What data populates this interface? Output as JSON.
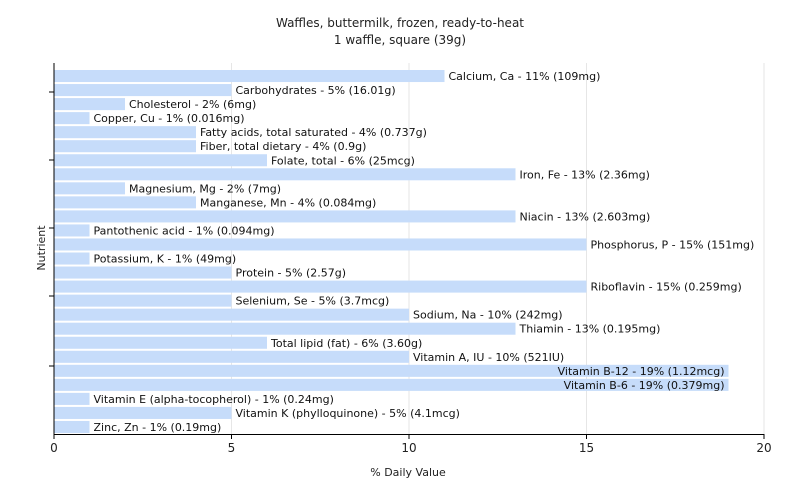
{
  "chart_data": {
    "type": "bar",
    "orientation": "horizontal",
    "title": "Waffles, buttermilk, frozen, ready-to-heat",
    "subtitle": "1 waffle, square (39g)",
    "xlabel": "% Daily Value",
    "ylabel": "Nutrient",
    "xlim": [
      0,
      20
    ],
    "xticks": [
      0,
      5,
      10,
      15,
      20
    ],
    "grid": true,
    "bar_color": "#c6dcfa",
    "categories": [
      "Calcium, Ca",
      "Carbohydrates",
      "Cholesterol",
      "Copper, Cu",
      "Fatty acids, total saturated",
      "Fiber, total dietary",
      "Folate, total",
      "Iron, Fe",
      "Magnesium, Mg",
      "Manganese, Mn",
      "Niacin",
      "Pantothenic acid",
      "Phosphorus, P",
      "Potassium, K",
      "Protein",
      "Riboflavin",
      "Selenium, Se",
      "Sodium, Na",
      "Thiamin",
      "Total lipid (fat)",
      "Vitamin A, IU",
      "Vitamin B-12",
      "Vitamin B-6",
      "Vitamin E (alpha-tocopherol)",
      "Vitamin K (phylloquinone)",
      "Zinc, Zn"
    ],
    "values": [
      11,
      5,
      2,
      1,
      4,
      4,
      6,
      13,
      2,
      4,
      13,
      1,
      15,
      1,
      5,
      15,
      5,
      10,
      13,
      6,
      10,
      19,
      19,
      1,
      5,
      1
    ],
    "labels": [
      "Calcium, Ca - 11% (109mg)",
      "Carbohydrates - 5% (16.01g)",
      "Cholesterol - 2% (6mg)",
      "Copper, Cu - 1% (0.016mg)",
      "Fatty acids, total saturated - 4% (0.737g)",
      "Fiber, total dietary - 4% (0.9g)",
      "Folate, total - 6% (25mcg)",
      "Iron, Fe - 13% (2.36mg)",
      "Magnesium, Mg - 2% (7mg)",
      "Manganese, Mn - 4% (0.084mg)",
      "Niacin - 13% (2.603mg)",
      "Pantothenic acid - 1% (0.094mg)",
      "Phosphorus, P - 15% (151mg)",
      "Potassium, K - 1% (49mg)",
      "Protein - 5% (2.57g)",
      "Riboflavin - 15% (0.259mg)",
      "Selenium, Se - 5% (3.7mcg)",
      "Sodium, Na - 10% (242mg)",
      "Thiamin - 13% (0.195mg)",
      "Total lipid (fat) - 6% (3.60g)",
      "Vitamin A, IU - 10% (521IU)",
      "Vitamin B-12 - 19% (1.12mcg)",
      "Vitamin B-6 - 19% (0.379mg)",
      "Vitamin E (alpha-tocopherol) - 1% (0.24mg)",
      "Vitamin K (phylloquinone) - 5% (4.1mcg)",
      "Zinc, Zn - 1% (0.19mg)"
    ]
  }
}
